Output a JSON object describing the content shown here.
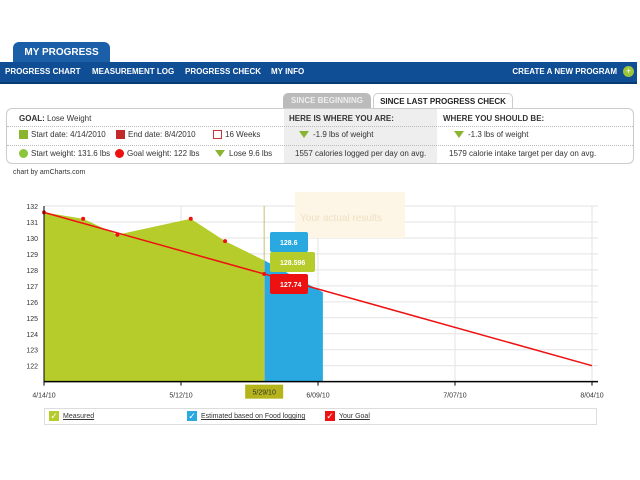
{
  "header": {
    "tab": "MY PROGRESS",
    "nav": [
      "PROGRESS CHART",
      "MEASUREMENT LOG",
      "PROGRESS CHECK",
      "MY INFO"
    ],
    "create": "CREATE A NEW PROGRAM"
  },
  "tabs": {
    "since_beginning": "SINCE BEGINNING",
    "since_last": "SINCE LAST PROGRESS CHECK"
  },
  "goal": {
    "label": "GOAL:",
    "value": "Lose Weight",
    "start_date": "Start date: 4/14/2010",
    "end_date": "End date: 8/4/2010",
    "weeks": "16 Weeks",
    "start_weight": "Start weight: 131.6 lbs",
    "goal_weight": "Goal weight: 122 lbs",
    "lose": "Lose 9.6 lbs"
  },
  "where_you_are": {
    "title": "HERE IS WHERE YOU ARE:",
    "weight": "-1.9 lbs of weight",
    "calories": "1557 calories logged per day on avg."
  },
  "where_should_be": {
    "title": "WHERE YOU SHOULD BE:",
    "weight": "-1.3 lbs of weight",
    "calories": "1579 calorie intake target per day on avg."
  },
  "credit": "chart by amCharts.com",
  "colors": {
    "measured": "#b5cc2a",
    "estimated": "#29a9e0",
    "goal": "#ee1111",
    "nav": "#0f4d94"
  },
  "chart_data": {
    "type": "area",
    "x_ticks": [
      "4/14/10",
      "5/12/10",
      "6/09/10",
      "7/07/10",
      "8/04/10"
    ],
    "y_ticks": [
      122,
      123,
      124,
      125,
      126,
      127,
      128,
      129,
      130,
      131,
      132
    ],
    "ylim": [
      121,
      132
    ],
    "grid": true,
    "cursor_label": "5/29/10",
    "watermark": "Your actual results",
    "series": [
      {
        "name": "Measured",
        "points": [
          [
            "4/14/10",
            131.6
          ],
          [
            "4/22/10",
            131.2
          ],
          [
            "4/29/10",
            130.2
          ],
          [
            "5/14/10",
            131.2
          ],
          [
            "5/21/10",
            129.8
          ],
          [
            "5/29/10",
            128.596
          ]
        ]
      },
      {
        "name": "Estimated based on Food logging",
        "points": [
          [
            "5/29/10",
            128.6
          ],
          [
            "6/10/10",
            126.6
          ]
        ]
      },
      {
        "name": "Your Goal",
        "points": [
          [
            "4/14/10",
            131.6
          ],
          [
            "8/04/10",
            122
          ]
        ]
      }
    ],
    "tooltips": [
      "128.6",
      "128.596",
      "127.74"
    ],
    "legend_placement": "bottom"
  }
}
